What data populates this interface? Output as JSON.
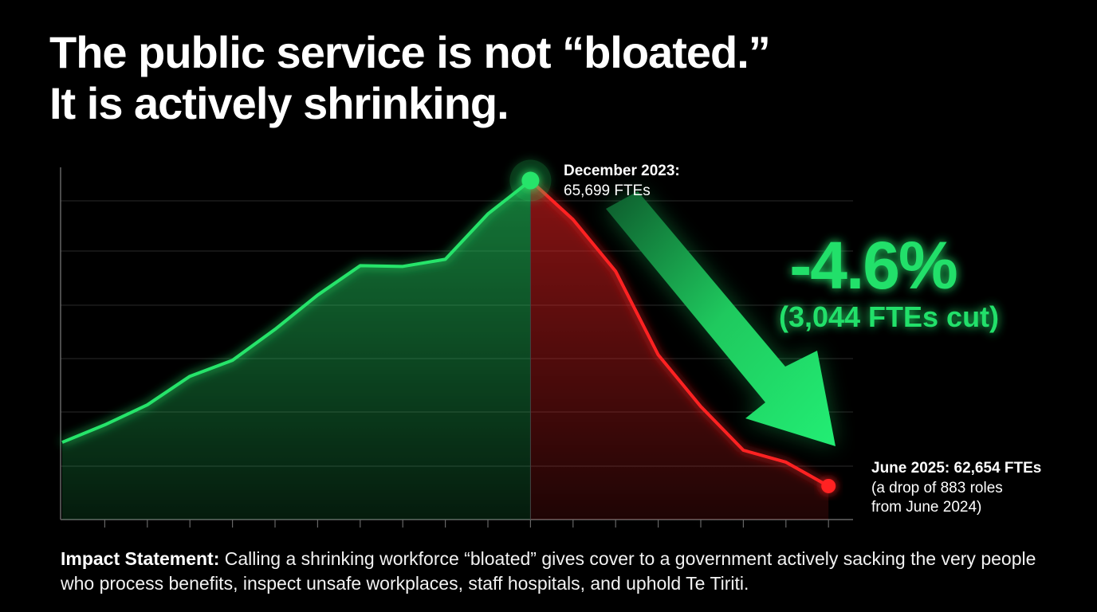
{
  "chart_data": {
    "type": "line",
    "title_lines": [
      "The public service is not “bloated.”",
      "It is actively shrinking."
    ],
    "categories": [
      null,
      null,
      null,
      null,
      null,
      null,
      null,
      null,
      null,
      null,
      null,
      null,
      null,
      null,
      null,
      null,
      null,
      null,
      null
    ],
    "series": [
      {
        "name": null,
        "color": "#27e46b",
        "decline_color": "#ff2424",
        "values": [
          63090,
          63264,
          63463,
          63748,
          63907,
          64216,
          64557,
          64850,
          64843,
          64914,
          65366,
          65699,
          65310,
          64795,
          63962,
          63447,
          63011,
          62892,
          62654
        ]
      }
    ],
    "ylim": [
      62320,
      65870
    ],
    "peak_label": [
      "December 2023:",
      "65,699 FTEs"
    ],
    "change_label": [
      "-4.6%",
      "(3,044 FTEs cut)"
    ],
    "end_label": [
      "June 2025: 62,654 FTEs",
      "(a drop of 883 roles",
      "from June 2024)"
    ],
    "impact": {
      "lead": "Impact Statement:",
      "text": "Calling a shrinking workforce “bloated” gives cover to a government actively sacking the very people who process benefits, inspect unsafe workplaces, staff hospitals, and uphold Te Tiriti."
    }
  }
}
